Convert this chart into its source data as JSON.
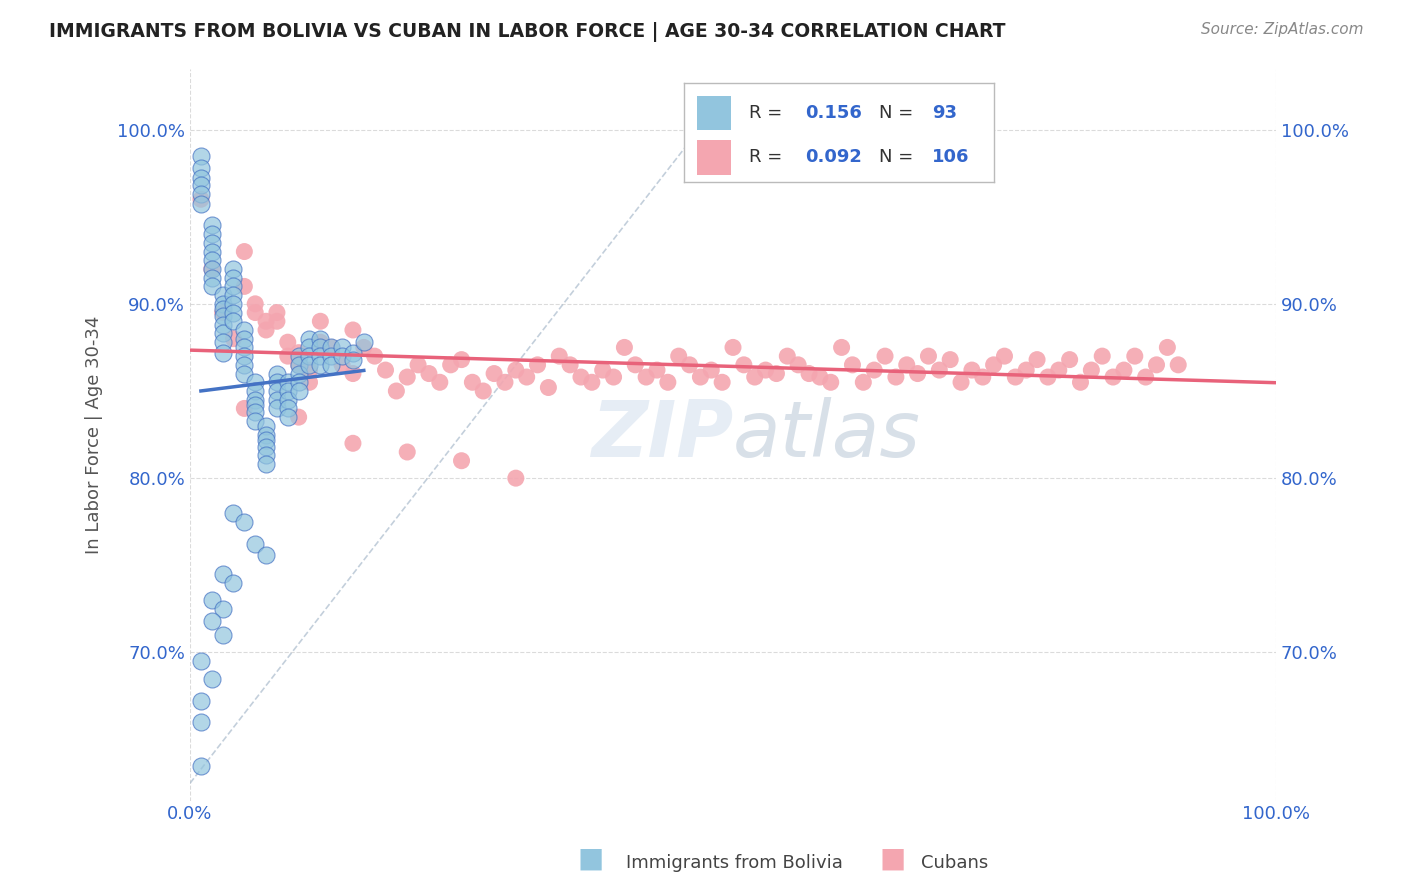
{
  "title": "IMMIGRANTS FROM BOLIVIA VS CUBAN IN LABOR FORCE | AGE 30-34 CORRELATION CHART",
  "source": "Source: ZipAtlas.com",
  "ylabel": "In Labor Force | Age 30-34",
  "xmin": 0.0,
  "xmax": 1.0,
  "ymin": 0.615,
  "ymax": 1.035,
  "ytick_labels": [
    "70.0%",
    "80.0%",
    "90.0%",
    "100.0%"
  ],
  "ytick_values": [
    0.7,
    0.8,
    0.9,
    1.0
  ],
  "xtick_labels": [
    "0.0%",
    "100.0%"
  ],
  "xtick_values": [
    0.0,
    1.0
  ],
  "bolivia_color": "#92C5DE",
  "cuba_color": "#F4A6B0",
  "bolivia_line_color": "#4472C4",
  "cuba_line_color": "#E8627A",
  "bolivia_R": 0.156,
  "bolivia_N": 93,
  "cuba_R": 0.092,
  "cuba_N": 106,
  "watermark": "ZIPatlas",
  "background_color": "#FFFFFF",
  "grid_color": "#CCCCCC",
  "bolivia_scatter_x": [
    0.01,
    0.01,
    0.01,
    0.01,
    0.01,
    0.01,
    0.02,
    0.02,
    0.02,
    0.02,
    0.02,
    0.02,
    0.02,
    0.02,
    0.03,
    0.03,
    0.03,
    0.03,
    0.03,
    0.03,
    0.03,
    0.03,
    0.04,
    0.04,
    0.04,
    0.04,
    0.04,
    0.04,
    0.04,
    0.05,
    0.05,
    0.05,
    0.05,
    0.05,
    0.05,
    0.06,
    0.06,
    0.06,
    0.06,
    0.06,
    0.06,
    0.07,
    0.07,
    0.07,
    0.07,
    0.07,
    0.07,
    0.08,
    0.08,
    0.08,
    0.08,
    0.08,
    0.09,
    0.09,
    0.09,
    0.09,
    0.09,
    0.1,
    0.1,
    0.1,
    0.1,
    0.1,
    0.11,
    0.11,
    0.11,
    0.11,
    0.12,
    0.12,
    0.12,
    0.12,
    0.13,
    0.13,
    0.13,
    0.14,
    0.14,
    0.15,
    0.15,
    0.16,
    0.04,
    0.05,
    0.06,
    0.07,
    0.03,
    0.04,
    0.02,
    0.03,
    0.02,
    0.03,
    0.01,
    0.02,
    0.01,
    0.01,
    0.01
  ],
  "bolivia_scatter_y": [
    0.985,
    0.978,
    0.972,
    0.968,
    0.963,
    0.957,
    0.945,
    0.94,
    0.935,
    0.93,
    0.925,
    0.92,
    0.915,
    0.91,
    0.905,
    0.9,
    0.897,
    0.893,
    0.888,
    0.883,
    0.878,
    0.872,
    0.92,
    0.915,
    0.91,
    0.905,
    0.9,
    0.895,
    0.89,
    0.885,
    0.88,
    0.875,
    0.87,
    0.865,
    0.86,
    0.855,
    0.85,
    0.845,
    0.842,
    0.838,
    0.833,
    0.83,
    0.825,
    0.822,
    0.818,
    0.813,
    0.808,
    0.86,
    0.855,
    0.85,
    0.845,
    0.84,
    0.855,
    0.85,
    0.845,
    0.84,
    0.835,
    0.87,
    0.865,
    0.86,
    0.855,
    0.85,
    0.88,
    0.875,
    0.87,
    0.865,
    0.88,
    0.875,
    0.87,
    0.865,
    0.875,
    0.87,
    0.865,
    0.875,
    0.87,
    0.872,
    0.868,
    0.878,
    0.78,
    0.775,
    0.762,
    0.756,
    0.745,
    0.74,
    0.73,
    0.725,
    0.718,
    0.71,
    0.695,
    0.685,
    0.672,
    0.66,
    0.635
  ],
  "cuba_scatter_x": [
    0.01,
    0.02,
    0.03,
    0.04,
    0.05,
    0.05,
    0.06,
    0.06,
    0.07,
    0.07,
    0.08,
    0.08,
    0.09,
    0.09,
    0.1,
    0.1,
    0.11,
    0.11,
    0.12,
    0.12,
    0.13,
    0.14,
    0.15,
    0.15,
    0.16,
    0.17,
    0.18,
    0.19,
    0.2,
    0.21,
    0.22,
    0.23,
    0.24,
    0.25,
    0.26,
    0.27,
    0.28,
    0.29,
    0.3,
    0.31,
    0.32,
    0.33,
    0.34,
    0.35,
    0.36,
    0.37,
    0.38,
    0.39,
    0.4,
    0.41,
    0.42,
    0.43,
    0.44,
    0.45,
    0.46,
    0.47,
    0.48,
    0.49,
    0.5,
    0.51,
    0.52,
    0.53,
    0.54,
    0.55,
    0.56,
    0.57,
    0.58,
    0.59,
    0.6,
    0.61,
    0.62,
    0.63,
    0.64,
    0.65,
    0.66,
    0.67,
    0.68,
    0.69,
    0.7,
    0.71,
    0.72,
    0.73,
    0.74,
    0.75,
    0.76,
    0.77,
    0.78,
    0.79,
    0.8,
    0.81,
    0.82,
    0.83,
    0.84,
    0.85,
    0.86,
    0.87,
    0.88,
    0.89,
    0.9,
    0.91,
    0.05,
    0.1,
    0.15,
    0.2,
    0.25,
    0.3
  ],
  "cuba_scatter_y": [
    0.96,
    0.92,
    0.895,
    0.88,
    0.93,
    0.91,
    0.9,
    0.895,
    0.89,
    0.885,
    0.895,
    0.89,
    0.878,
    0.87,
    0.872,
    0.865,
    0.862,
    0.855,
    0.89,
    0.878,
    0.875,
    0.865,
    0.885,
    0.86,
    0.875,
    0.87,
    0.862,
    0.85,
    0.858,
    0.865,
    0.86,
    0.855,
    0.865,
    0.868,
    0.855,
    0.85,
    0.86,
    0.855,
    0.862,
    0.858,
    0.865,
    0.852,
    0.87,
    0.865,
    0.858,
    0.855,
    0.862,
    0.858,
    0.875,
    0.865,
    0.858,
    0.862,
    0.855,
    0.87,
    0.865,
    0.858,
    0.862,
    0.855,
    0.875,
    0.865,
    0.858,
    0.862,
    0.86,
    0.87,
    0.865,
    0.86,
    0.858,
    0.855,
    0.875,
    0.865,
    0.855,
    0.862,
    0.87,
    0.858,
    0.865,
    0.86,
    0.87,
    0.862,
    0.868,
    0.855,
    0.862,
    0.858,
    0.865,
    0.87,
    0.858,
    0.862,
    0.868,
    0.858,
    0.862,
    0.868,
    0.855,
    0.862,
    0.87,
    0.858,
    0.862,
    0.87,
    0.858,
    0.865,
    0.875,
    0.865,
    0.84,
    0.835,
    0.82,
    0.815,
    0.81,
    0.8
  ]
}
